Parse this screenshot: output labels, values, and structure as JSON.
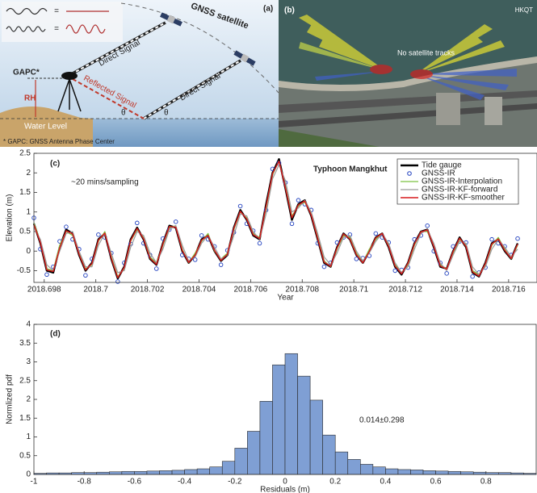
{
  "panel_a": {
    "label": "(a)",
    "satellite_label": "GNSS satellite",
    "direct_signal": [
      "Direct Signal",
      "Direct Signal"
    ],
    "reflected_signal": "Reflected Signal",
    "gapc": "GAPC*",
    "rh": "RH",
    "water_level": "Water Level",
    "footnote": "* GAPC: GNSS Antenna Phase Center",
    "angles": [
      "θ",
      "θ"
    ],
    "wave_equals": [
      "=",
      "="
    ]
  },
  "panel_b": {
    "label": "(b)",
    "station": "HKQT",
    "annotation": "No satellite tracks"
  },
  "chart_data": [
    {
      "type": "line",
      "panel_label": "(c)",
      "xlabel": "Year",
      "ylabel": "Elevation (m)",
      "annotations": [
        "~20 mins/sampling",
        "Typhoon Mangkhut"
      ],
      "legend": "upper right",
      "grid": false,
      "xlim": [
        2018.6976,
        2018.7171
      ],
      "xticks": [
        2018.698,
        2018.7,
        2018.702,
        2018.704,
        2018.706,
        2018.708,
        2018.71,
        2018.712,
        2018.714,
        2018.716
      ],
      "ylim": [
        -0.8,
        2.5
      ],
      "yticks": [
        -0.5,
        0,
        0.5,
        1,
        1.5,
        2,
        2.5
      ],
      "x": [
        2018.6976,
        2018.69785,
        2018.6981,
        2018.69835,
        2018.6986,
        2018.69885,
        2018.6991,
        2018.69935,
        2018.6996,
        2018.69985,
        2018.7001,
        2018.70035,
        2018.7006,
        2018.70085,
        2018.7011,
        2018.70135,
        2018.7016,
        2018.70185,
        2018.7021,
        2018.70235,
        2018.7026,
        2018.70285,
        2018.7031,
        2018.70335,
        2018.7036,
        2018.70385,
        2018.7041,
        2018.70435,
        2018.7046,
        2018.70485,
        2018.7051,
        2018.70535,
        2018.7056,
        2018.70585,
        2018.7061,
        2018.70635,
        2018.7066,
        2018.70685,
        2018.7071,
        2018.70735,
        2018.7076,
        2018.70785,
        2018.7081,
        2018.70835,
        2018.7086,
        2018.70885,
        2018.7091,
        2018.70935,
        2018.7096,
        2018.70985,
        2018.7101,
        2018.71035,
        2018.7106,
        2018.71085,
        2018.7111,
        2018.71135,
        2018.7116,
        2018.71185,
        2018.7121,
        2018.71235,
        2018.7126,
        2018.71285,
        2018.7131,
        2018.71335,
        2018.7136,
        2018.71385,
        2018.7141,
        2018.71435,
        2018.7146,
        2018.71485,
        2018.7151,
        2018.71535,
        2018.7156,
        2018.71585,
        2018.7161,
        2018.71635
      ],
      "series": [
        {
          "name": "Tide gauge",
          "color": "#000000",
          "style": "line",
          "line_width": 2.4,
          "values": [
            0.7,
            0.2,
            -0.5,
            -0.55,
            0.1,
            0.55,
            0.45,
            -0.1,
            -0.5,
            -0.3,
            0.3,
            0.45,
            -0.2,
            -0.7,
            -0.4,
            0.3,
            0.6,
            0.3,
            -0.2,
            -0.35,
            0.2,
            0.65,
            0.6,
            0.0,
            -0.3,
            -0.1,
            0.3,
            0.4,
            0.0,
            -0.25,
            -0.1,
            0.6,
            1.05,
            0.8,
            0.4,
            0.3,
            1.2,
            2.0,
            2.35,
            1.6,
            0.8,
            1.2,
            1.3,
            0.9,
            0.3,
            -0.3,
            -0.4,
            0.1,
            0.45,
            0.3,
            -0.1,
            -0.3,
            0.0,
            0.35,
            0.45,
            0.1,
            -0.4,
            -0.6,
            -0.3,
            0.2,
            0.5,
            0.55,
            0.1,
            -0.4,
            -0.45,
            0.0,
            0.35,
            0.1,
            -0.55,
            -0.65,
            -0.3,
            0.2,
            0.3,
            0.0,
            -0.2,
            0.2
          ]
        },
        {
          "name": "GNSS-IR",
          "color": "#1f3fbf",
          "style": "markers",
          "values": [
            0.85,
            0.05,
            -0.6,
            -0.4,
            0.25,
            0.62,
            0.3,
            0.05,
            -0.62,
            -0.2,
            0.42,
            0.35,
            -0.05,
            -0.78,
            -0.3,
            0.18,
            0.72,
            0.2,
            -0.1,
            -0.45,
            0.32,
            0.55,
            0.75,
            -0.1,
            -0.2,
            -0.22,
            0.4,
            0.3,
            0.12,
            -0.35,
            0.02,
            0.48,
            1.15,
            0.7,
            0.52,
            0.2,
            1.05,
            2.1,
            2.25,
            1.75,
            0.7,
            1.3,
            1.2,
            1.05,
            0.2,
            -0.4,
            -0.3,
            0.22,
            0.35,
            0.42,
            -0.2,
            -0.18,
            -0.12,
            0.45,
            0.35,
            0.22,
            -0.5,
            -0.48,
            -0.42,
            0.3,
            0.4,
            0.65,
            0.0,
            -0.3,
            -0.57,
            0.12,
            0.25,
            0.22,
            -0.65,
            -0.55,
            -0.42,
            0.3,
            0.2,
            0.12,
            -0.1,
            0.32
          ]
        },
        {
          "name": "GNSS-IR-Interpolation",
          "color": "#7cc242",
          "style": "line",
          "line_width": 1.2,
          "values": [
            0.72,
            0.25,
            -0.45,
            -0.5,
            0.15,
            0.5,
            0.4,
            -0.05,
            -0.45,
            -0.35,
            0.25,
            0.5,
            -0.15,
            -0.65,
            -0.45,
            0.25,
            0.55,
            0.35,
            -0.15,
            -0.3,
            0.15,
            0.6,
            0.65,
            0.05,
            -0.3,
            -0.05,
            0.25,
            0.45,
            0.0,
            -0.2,
            -0.05,
            0.55,
            1.0,
            0.85,
            0.45,
            0.35,
            1.1,
            1.95,
            2.3,
            1.65,
            0.9,
            1.15,
            1.25,
            0.95,
            0.35,
            -0.25,
            -0.4,
            0.05,
            0.4,
            0.35,
            -0.05,
            -0.3,
            0.05,
            0.3,
            0.45,
            0.15,
            -0.35,
            -0.55,
            -0.35,
            0.15,
            0.5,
            0.5,
            0.15,
            -0.35,
            -0.45,
            -0.05,
            0.3,
            0.15,
            -0.5,
            -0.6,
            -0.35,
            0.15,
            0.35,
            0.05,
            -0.2,
            0.15
          ]
        },
        {
          "name": "GNSS-IR-KF-forward",
          "color": "#9a9a9a",
          "style": "line",
          "line_width": 1.2,
          "values": [
            0.6,
            0.3,
            -0.35,
            -0.5,
            0.0,
            0.45,
            0.5,
            0.0,
            -0.4,
            -0.4,
            0.15,
            0.45,
            -0.05,
            -0.55,
            -0.5,
            0.1,
            0.5,
            0.4,
            -0.05,
            -0.3,
            0.05,
            0.55,
            0.65,
            0.15,
            -0.25,
            -0.15,
            0.2,
            0.4,
            0.1,
            -0.2,
            -0.1,
            0.4,
            0.95,
            0.9,
            0.5,
            0.3,
            0.95,
            1.85,
            2.2,
            1.8,
            1.0,
            1.1,
            1.3,
            1.0,
            0.45,
            -0.15,
            -0.35,
            -0.05,
            0.35,
            0.4,
            0.0,
            -0.25,
            -0.05,
            0.25,
            0.45,
            0.2,
            -0.3,
            -0.55,
            -0.4,
            0.05,
            0.45,
            0.55,
            0.2,
            -0.3,
            -0.5,
            -0.1,
            0.25,
            0.2,
            -0.4,
            -0.6,
            -0.4,
            0.05,
            0.3,
            0.1,
            -0.15,
            0.05
          ]
        },
        {
          "name": "GNSS-IR-KF-smoother",
          "color": "#d7191c",
          "style": "line",
          "line_width": 1.4,
          "values": [
            0.68,
            0.22,
            -0.48,
            -0.52,
            0.08,
            0.52,
            0.44,
            -0.08,
            -0.48,
            -0.32,
            0.28,
            0.46,
            -0.18,
            -0.68,
            -0.42,
            0.27,
            0.58,
            0.32,
            -0.18,
            -0.34,
            0.18,
            0.63,
            0.61,
            0.02,
            -0.29,
            -0.1,
            0.28,
            0.4,
            0.02,
            -0.24,
            -0.08,
            0.58,
            1.02,
            0.82,
            0.42,
            0.32,
            1.15,
            1.98,
            2.3,
            1.62,
            0.85,
            1.18,
            1.28,
            0.92,
            0.32,
            -0.28,
            -0.39,
            0.08,
            0.44,
            0.31,
            -0.09,
            -0.3,
            -0.01,
            0.34,
            0.45,
            0.12,
            -0.38,
            -0.58,
            -0.31,
            0.18,
            0.49,
            0.54,
            0.12,
            -0.38,
            -0.46,
            -0.01,
            0.33,
            0.12,
            -0.53,
            -0.64,
            -0.32,
            0.18,
            0.31,
            0.02,
            -0.19,
            0.18
          ]
        }
      ]
    },
    {
      "type": "histogram",
      "panel_label": "(d)",
      "xlabel": "Residuals (m)",
      "ylabel": "Normlized pdf",
      "annotations": [
        "0.014±0.298"
      ],
      "color": "#7f9fd4",
      "edgecolor": "#2a2a2a",
      "xlim": [
        -1,
        1
      ],
      "xticks": [
        -1,
        -0.8,
        -0.6,
        -0.4,
        -0.2,
        0,
        0.2,
        0.4,
        0.6,
        0.8
      ],
      "ylim": [
        0,
        4
      ],
      "yticks": [
        0,
        0.5,
        1,
        1.5,
        2,
        2.5,
        3,
        3.5,
        4
      ],
      "bins": [
        -1,
        -0.95,
        -0.9,
        -0.85,
        -0.8,
        -0.75,
        -0.7,
        -0.65,
        -0.6,
        -0.55,
        -0.5,
        -0.45,
        -0.4,
        -0.35,
        -0.3,
        -0.25,
        -0.2,
        -0.15,
        -0.1,
        -0.05,
        0,
        0.05,
        0.1,
        0.15,
        0.2,
        0.25,
        0.3,
        0.35,
        0.4,
        0.45,
        0.5,
        0.55,
        0.6,
        0.65,
        0.7,
        0.75,
        0.8,
        0.85,
        0.9,
        0.95,
        1
      ],
      "values": [
        0.03,
        0.04,
        0.04,
        0.05,
        0.05,
        0.06,
        0.07,
        0.08,
        0.08,
        0.09,
        0.1,
        0.11,
        0.13,
        0.15,
        0.2,
        0.35,
        0.7,
        1.15,
        1.95,
        2.92,
        3.22,
        2.62,
        1.98,
        1.05,
        0.6,
        0.4,
        0.27,
        0.2,
        0.15,
        0.13,
        0.12,
        0.1,
        0.09,
        0.08,
        0.07,
        0.06,
        0.05,
        0.05,
        0.04,
        0.03
      ]
    }
  ]
}
